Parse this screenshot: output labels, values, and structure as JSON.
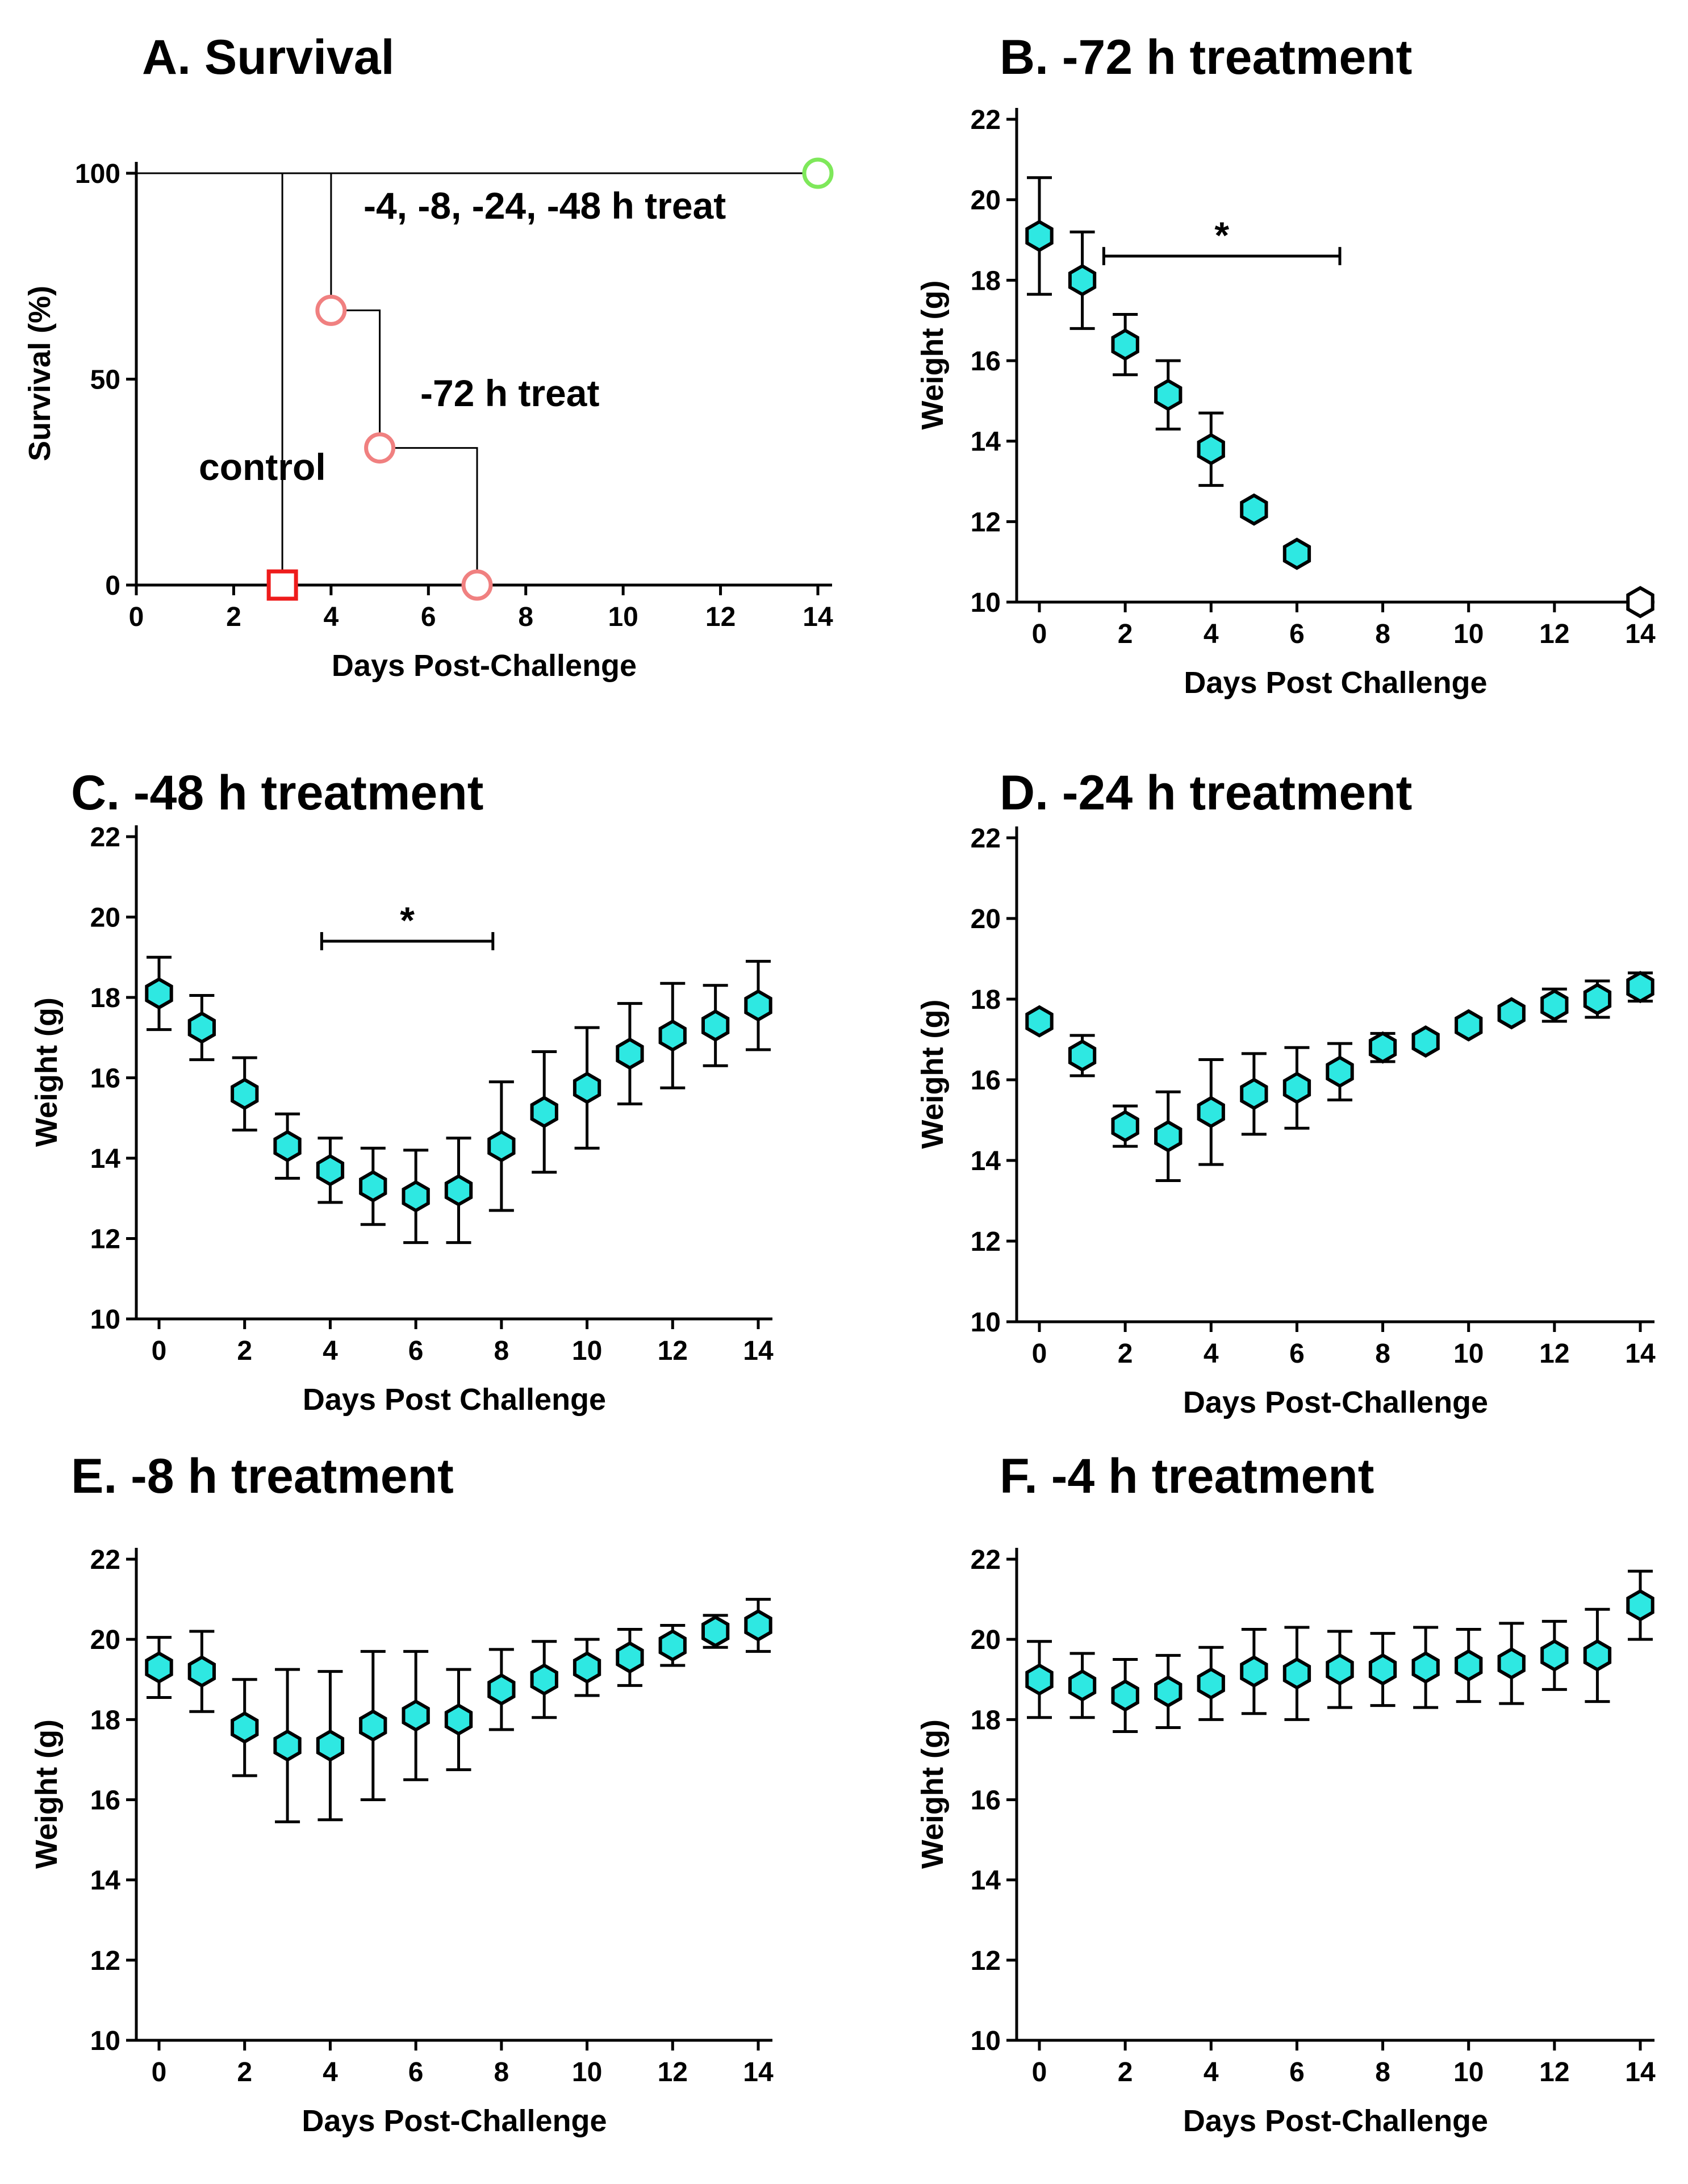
{
  "figure": {
    "background": "#ffffff",
    "marker_fill": "#2ee8e2",
    "marker_stroke": "#000000"
  },
  "chart_data": [
    {
      "panel": "A",
      "type": "line",
      "title": "A. Survival",
      "xlabel": "Days Post-Challenge",
      "ylabel": "Survival (%)",
      "xlim": [
        0,
        14
      ],
      "ylim": [
        0,
        100
      ],
      "xticks": [
        0,
        2,
        4,
        6,
        8,
        10,
        12,
        14
      ],
      "yticks": [
        0,
        50,
        100
      ],
      "series": [
        {
          "name": "control",
          "label": "control",
          "color": "#ee1c1c",
          "marker": "square",
          "x": [
            0,
            3,
            3
          ],
          "y": [
            100,
            100,
            0
          ],
          "markers": [
            {
              "x": 3,
              "y": 0
            }
          ]
        },
        {
          "name": "-72 h treat",
          "label": "-72 h treat",
          "color": "#f08080",
          "marker": "circle",
          "x": [
            0,
            4,
            4,
            5,
            5,
            7,
            7
          ],
          "y": [
            100,
            100,
            66.7,
            66.7,
            33.3,
            33.3,
            0
          ],
          "markers": [
            {
              "x": 4,
              "y": 66.7
            },
            {
              "x": 5,
              "y": 33.3
            },
            {
              "x": 7,
              "y": 0
            }
          ]
        },
        {
          "name": "-4, -8, -24, -48 h treat",
          "label": "-4, -8, -24, -48 h treat",
          "color": "#7ee85a",
          "marker": "circle",
          "x": [
            0,
            14
          ],
          "y": [
            100,
            100
          ],
          "markers": [
            {
              "x": 14,
              "y": 100
            }
          ]
        }
      ]
    },
    {
      "panel": "B",
      "type": "scatter",
      "title": "B. -72 h treatment",
      "xlabel": "Days Post  Challenge",
      "ylabel": "Weight (g)",
      "xlim": [
        0,
        14
      ],
      "ylim": [
        10,
        22
      ],
      "xticks": [
        0,
        2,
        4,
        6,
        8,
        10,
        12,
        14
      ],
      "yticks": [
        10,
        12,
        14,
        16,
        18,
        20,
        22
      ],
      "x": [
        0,
        1,
        2,
        3,
        4,
        5,
        6,
        14
      ],
      "y": [
        19.1,
        18.0,
        16.4,
        15.15,
        13.8,
        12.3,
        11.2,
        10.0
      ],
      "err": [
        1.45,
        1.2,
        0.75,
        0.85,
        0.9,
        0,
        0,
        0
      ],
      "open_points": [
        14
      ],
      "significance": {
        "label": "*",
        "x_start": 1.5,
        "x_end": 7,
        "y": 18.6
      }
    },
    {
      "panel": "C",
      "type": "scatter",
      "title": "C. -48 h treatment",
      "xlabel": "Days Post  Challenge",
      "ylabel": "Weight (g)",
      "xlim": [
        0,
        14
      ],
      "ylim": [
        10,
        22
      ],
      "xticks": [
        0,
        2,
        4,
        6,
        8,
        10,
        12,
        14
      ],
      "yticks": [
        10,
        12,
        14,
        16,
        18,
        20,
        22
      ],
      "x": [
        0,
        1,
        2,
        3,
        4,
        5,
        6,
        7,
        8,
        9,
        10,
        11,
        12,
        13,
        14
      ],
      "y": [
        18.1,
        17.25,
        15.6,
        14.3,
        13.7,
        13.3,
        13.05,
        13.2,
        14.3,
        15.15,
        15.75,
        16.6,
        17.05,
        17.3,
        17.8
      ],
      "err": [
        0.9,
        0.8,
        0.9,
        0.8,
        0.8,
        0.95,
        1.15,
        1.3,
        1.6,
        1.5,
        1.5,
        1.25,
        1.3,
        1.0,
        1.1
      ],
      "open_points": [],
      "significance": {
        "label": "*",
        "x_start": 3.8,
        "x_end": 7.8,
        "y": 19.4
      }
    },
    {
      "panel": "D",
      "type": "scatter",
      "title": "D. -24 h treatment",
      "xlabel": "Days Post-Challenge",
      "ylabel": "Weight (g)",
      "xlim": [
        0,
        14
      ],
      "ylim": [
        10,
        22
      ],
      "xticks": [
        0,
        2,
        4,
        6,
        8,
        10,
        12,
        14
      ],
      "yticks": [
        10,
        12,
        14,
        16,
        18,
        20,
        22
      ],
      "x": [
        0,
        1,
        2,
        3,
        4,
        5,
        6,
        7,
        8,
        9,
        10,
        11,
        12,
        13,
        14
      ],
      "y": [
        17.45,
        16.6,
        14.85,
        14.6,
        15.2,
        15.65,
        15.8,
        16.2,
        16.8,
        16.95,
        17.35,
        17.65,
        17.85,
        18.0,
        18.3
      ],
      "err": [
        0,
        0.5,
        0.5,
        1.1,
        1.3,
        1.0,
        1.0,
        0.7,
        0.35,
        0,
        0,
        0,
        0.4,
        0.45,
        0.35
      ],
      "open_points": []
    },
    {
      "panel": "E",
      "type": "scatter",
      "title": "E. -8 h treatment",
      "xlabel": "Days Post-Challenge",
      "ylabel": "Weight (g)",
      "xlim": [
        0,
        14
      ],
      "ylim": [
        10,
        22
      ],
      "xticks": [
        0,
        2,
        4,
        6,
        8,
        10,
        12,
        14
      ],
      "yticks": [
        10,
        12,
        14,
        16,
        18,
        20,
        22
      ],
      "x": [
        0,
        1,
        2,
        3,
        4,
        5,
        6,
        7,
        8,
        9,
        10,
        11,
        12,
        13,
        14
      ],
      "y": [
        19.3,
        19.2,
        17.8,
        17.35,
        17.35,
        17.85,
        18.1,
        18.0,
        18.75,
        19.0,
        19.3,
        19.55,
        19.85,
        20.2,
        20.35
      ],
      "err": [
        0.75,
        1.0,
        1.2,
        1.9,
        1.85,
        1.85,
        1.6,
        1.25,
        1.0,
        0.95,
        0.7,
        0.7,
        0.5,
        0.4,
        0.65
      ],
      "open_points": []
    },
    {
      "panel": "F",
      "type": "scatter",
      "title": "F. -4 h treatment",
      "xlabel": "Days Post-Challenge",
      "ylabel": "Weight (g)",
      "xlim": [
        0,
        14
      ],
      "ylim": [
        10,
        22
      ],
      "xticks": [
        0,
        2,
        4,
        6,
        8,
        10,
        12,
        14
      ],
      "yticks": [
        10,
        12,
        14,
        16,
        18,
        20,
        22
      ],
      "x": [
        0,
        1,
        2,
        3,
        4,
        5,
        6,
        7,
        8,
        9,
        10,
        11,
        12,
        13,
        14
      ],
      "y": [
        19.0,
        18.85,
        18.6,
        18.7,
        18.9,
        19.2,
        19.15,
        19.25,
        19.25,
        19.3,
        19.35,
        19.4,
        19.6,
        19.6,
        20.85
      ],
      "err": [
        0.95,
        0.8,
        0.9,
        0.9,
        0.9,
        1.05,
        1.15,
        0.95,
        0.9,
        1.0,
        0.9,
        1.0,
        0.85,
        1.15,
        0.85
      ],
      "open_points": []
    }
  ]
}
